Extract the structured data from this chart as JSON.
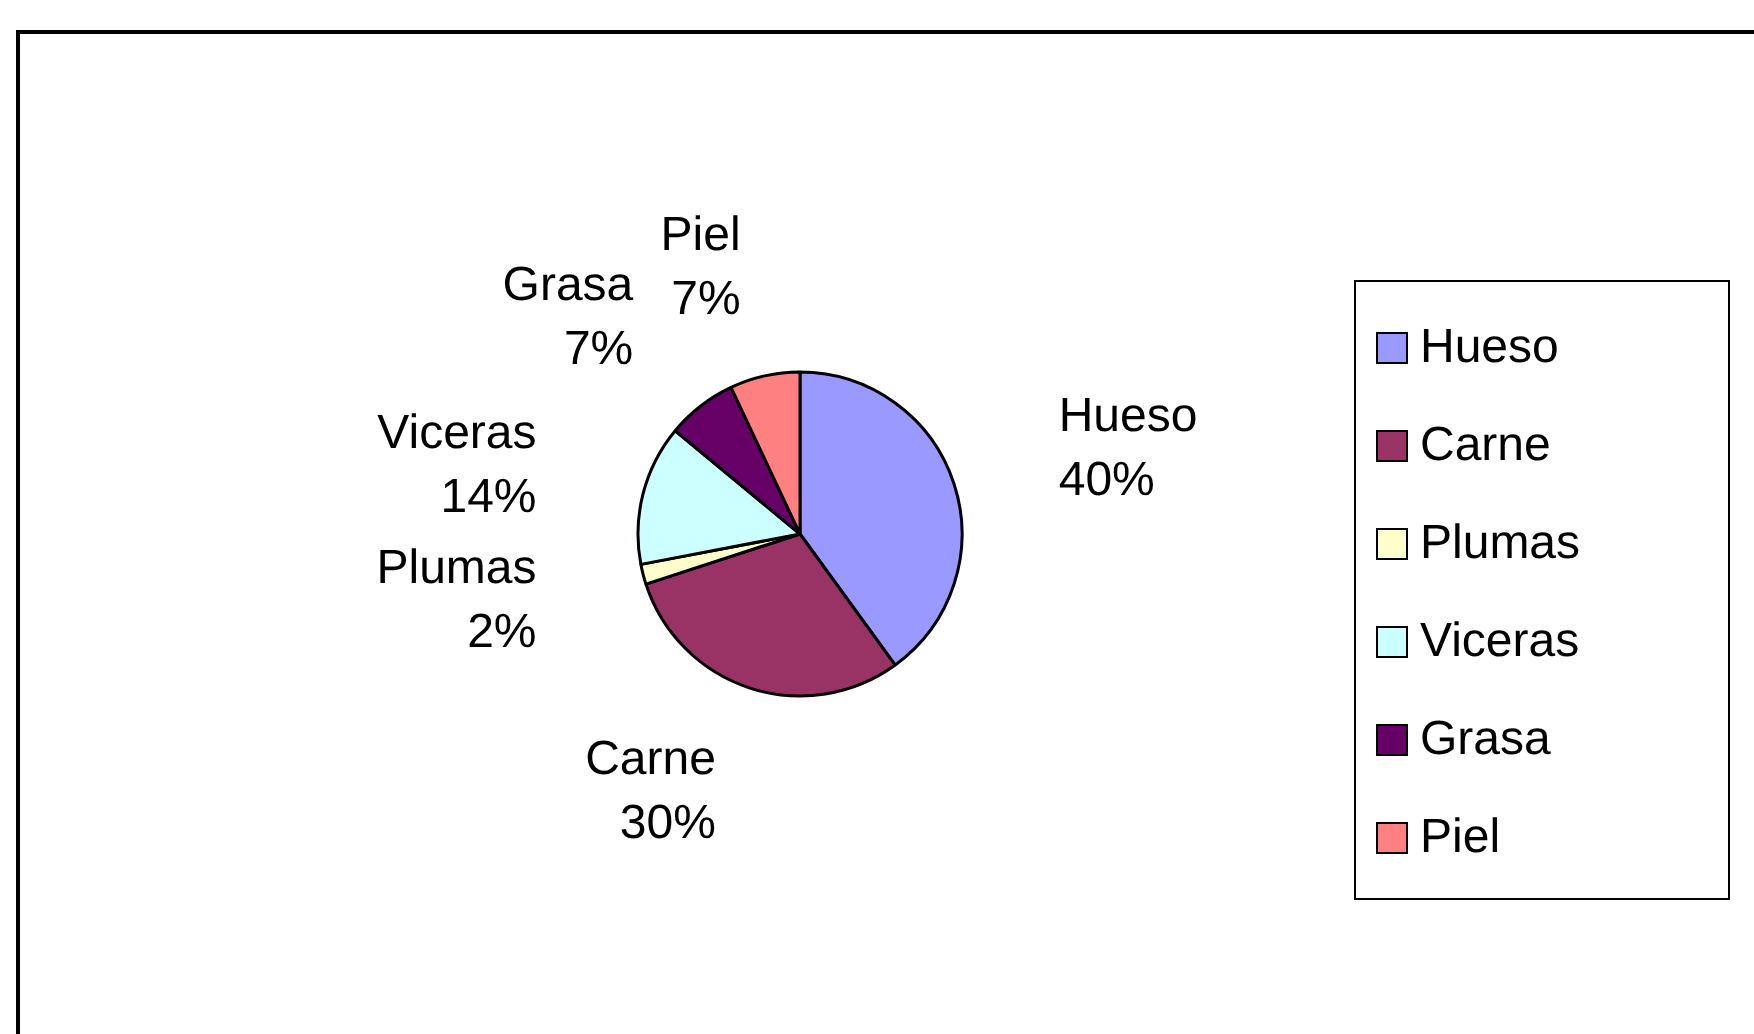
{
  "chart_data": {
    "type": "pie",
    "categories": [
      "Hueso",
      "Carne",
      "Plumas",
      "Viceras",
      "Grasa",
      "Piel"
    ],
    "values": [
      40,
      30,
      2,
      14,
      7,
      7
    ],
    "colors": [
      "#9999ff",
      "#993366",
      "#ffffcc",
      "#ccffff",
      "#660066",
      "#ff8080"
    ],
    "value_labels": [
      "40%",
      "30%",
      "2%",
      "14%",
      "7%",
      "7%"
    ],
    "legend": "right"
  }
}
